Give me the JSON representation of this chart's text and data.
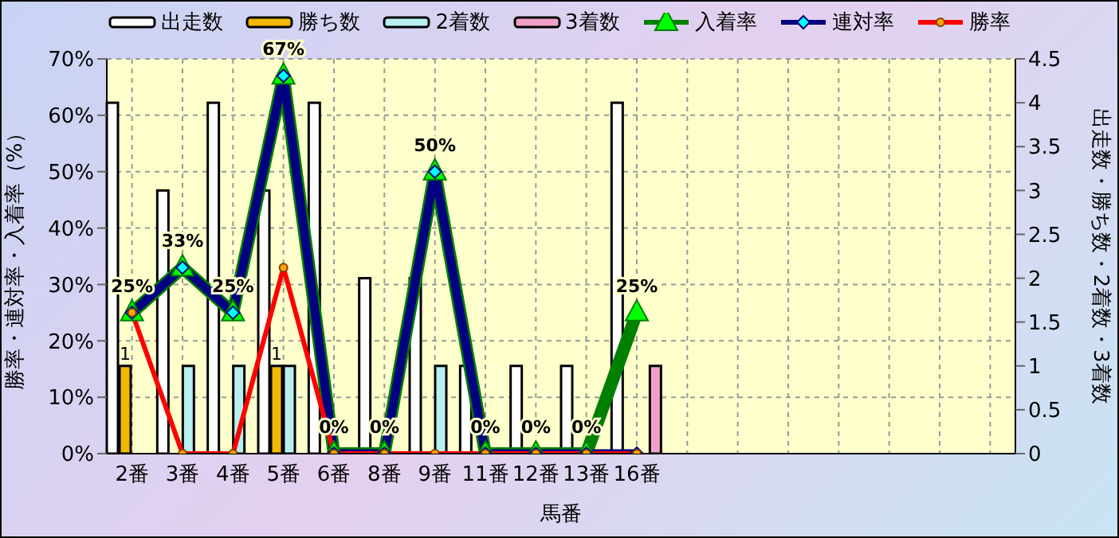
{
  "chart_data": {
    "type": "bar",
    "xlabel": "馬番",
    "ylabel": "勝率・連対率・入着率（%）",
    "y2label": "出走数・勝ち数・2着数・3着数",
    "categories": [
      "2番",
      "3番",
      "4番",
      "5番",
      "6番",
      "8番",
      "9番",
      "11番",
      "12番",
      "13番",
      "16番",
      null,
      null,
      null,
      null,
      null,
      null,
      null
    ],
    "series": [
      {
        "name": "出走数",
        "axis": "y2",
        "color": "#ffffff",
        "values": [
          4,
          3,
          4,
          3,
          4,
          2,
          2,
          1,
          1,
          1,
          4,
          null,
          null,
          null,
          null,
          null,
          null,
          null
        ]
      },
      {
        "name": "勝ち数",
        "axis": "y2",
        "color": "#f0b800",
        "values": [
          1,
          0,
          0,
          1,
          0,
          0,
          0,
          0,
          0,
          0,
          0,
          null,
          null,
          null,
          null,
          null,
          null,
          null
        ],
        "value_labels": [
          "1",
          null,
          null,
          "1",
          null,
          null,
          null,
          null,
          null,
          null,
          null,
          null,
          null,
          null,
          null,
          null,
          null,
          null
        ]
      },
      {
        "name": "2着数",
        "axis": "y2",
        "color": "#b8f0f0",
        "values": [
          0,
          1,
          1,
          1,
          0,
          0,
          1,
          0,
          0,
          0,
          0,
          null,
          null,
          null,
          null,
          null,
          null,
          null
        ]
      },
      {
        "name": "3着数",
        "axis": "y2",
        "color": "#f0a0c8",
        "values": [
          0,
          0,
          0,
          0,
          0,
          0,
          0,
          0,
          0,
          0,
          1,
          null,
          null,
          null,
          null,
          null,
          null,
          null
        ]
      },
      {
        "name": "入着率",
        "type": "line",
        "marker": "triangle",
        "color": "#008000",
        "values": [
          25,
          33,
          25,
          67,
          0,
          0,
          50,
          0,
          0,
          0,
          25,
          null,
          null,
          null,
          null,
          null,
          null,
          null
        ],
        "value_labels": [
          "25%",
          "33%",
          "25%",
          "67%",
          "0%",
          "0%",
          "50%",
          "0%",
          "0%",
          "0%",
          "25%",
          null,
          null,
          null,
          null,
          null,
          null,
          null
        ]
      },
      {
        "name": "連対率",
        "type": "line",
        "marker": "diamond",
        "color": "#000080",
        "values": [
          25,
          33,
          25,
          67,
          0,
          0,
          50,
          0,
          0,
          0,
          0,
          null,
          null,
          null,
          null,
          null,
          null,
          null
        ]
      },
      {
        "name": "勝率",
        "type": "line",
        "marker": "circle",
        "color": "#ff0000",
        "values": [
          25,
          0,
          0,
          33,
          0,
          0,
          0,
          0,
          0,
          0,
          0,
          null,
          null,
          null,
          null,
          null,
          null,
          null
        ]
      }
    ],
    "ylim": [
      0,
      70
    ],
    "yticks": [
      {
        "value": 0,
        "label": "0%"
      },
      {
        "value": 10,
        "label": "10%"
      },
      {
        "value": 20,
        "label": "20%"
      },
      {
        "value": 30,
        "label": "30%"
      },
      {
        "value": 40,
        "label": "40%"
      },
      {
        "value": 50,
        "label": "50%"
      },
      {
        "value": 60,
        "label": "60%"
      },
      {
        "value": 70,
        "label": "70%"
      }
    ],
    "y2lim": [
      0,
      4.5
    ],
    "y2ticks": [
      0,
      0.5,
      1,
      1.5,
      2,
      2.5,
      3,
      3.5,
      4,
      4.5
    ],
    "grid": true,
    "legend": "top"
  }
}
